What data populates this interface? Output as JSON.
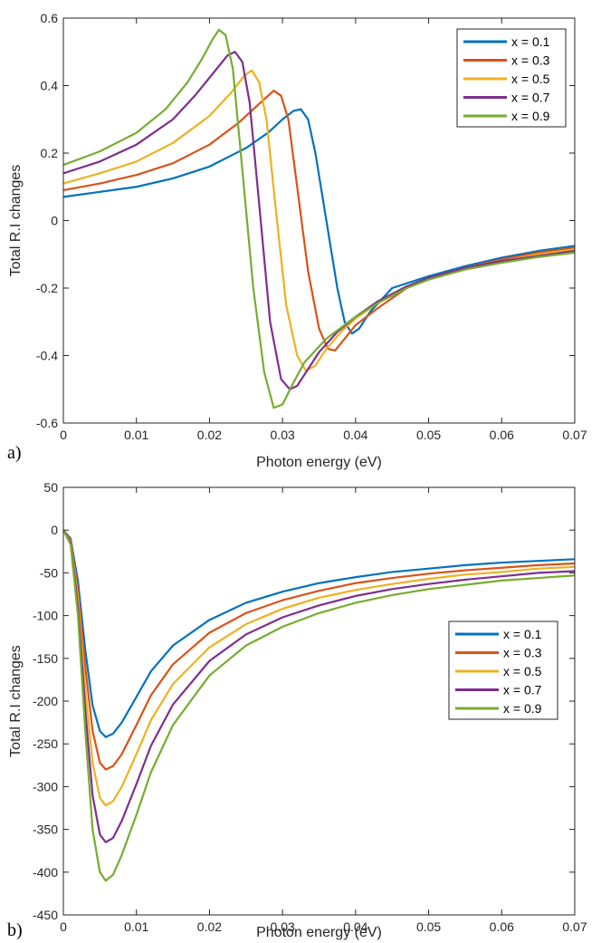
{
  "colors": {
    "series": [
      "#0072BD",
      "#D95319",
      "#EDB120",
      "#7E2F8E",
      "#77AC30"
    ],
    "axis": "#262626"
  },
  "chart_data": [
    {
      "id": "a",
      "panel_label": "a)",
      "type": "line",
      "xlabel": "Photon energy (eV)",
      "ylabel": "Total R.I changes",
      "xlim": [
        0,
        0.07
      ],
      "ylim": [
        -0.6,
        0.6
      ],
      "xticks": [
        0,
        0.01,
        0.02,
        0.03,
        0.04,
        0.05,
        0.06,
        0.07
      ],
      "xtick_labels": [
        "0",
        "0.01",
        "0.02",
        "0.03",
        "0.04",
        "0.05",
        "0.06",
        "0.07"
      ],
      "yticks": [
        -0.6,
        -0.4,
        -0.2,
        0,
        0.2,
        0.4,
        0.6
      ],
      "ytick_labels": [
        "-0.6",
        "-0.4",
        "-0.2",
        "0",
        "0.2",
        "0.4",
        "0.6"
      ],
      "legend_position": "top-right",
      "series": [
        {
          "name": "x = 0.1",
          "x": [
            0,
            0.005,
            0.01,
            0.015,
            0.02,
            0.025,
            0.028,
            0.03,
            0.0315,
            0.0325,
            0.0335,
            0.0345,
            0.036,
            0.0375,
            0.0385,
            0.0395,
            0.0405,
            0.042,
            0.045,
            0.05,
            0.055,
            0.06,
            0.065,
            0.07
          ],
          "y": [
            0.07,
            0.085,
            0.1,
            0.125,
            0.16,
            0.215,
            0.26,
            0.3,
            0.325,
            0.33,
            0.3,
            0.2,
            0.0,
            -0.2,
            -0.3,
            -0.335,
            -0.32,
            -0.27,
            -0.2,
            -0.165,
            -0.135,
            -0.11,
            -0.09,
            -0.075
          ]
        },
        {
          "name": "x = 0.3",
          "x": [
            0,
            0.005,
            0.01,
            0.015,
            0.02,
            0.024,
            0.027,
            0.0288,
            0.0298,
            0.0308,
            0.032,
            0.0335,
            0.035,
            0.0362,
            0.0372,
            0.0385,
            0.04,
            0.043,
            0.047,
            0.05,
            0.055,
            0.06,
            0.065,
            0.07
          ],
          "y": [
            0.09,
            0.11,
            0.135,
            0.17,
            0.225,
            0.29,
            0.35,
            0.385,
            0.37,
            0.3,
            0.1,
            -0.15,
            -0.32,
            -0.38,
            -0.385,
            -0.35,
            -0.31,
            -0.26,
            -0.2,
            -0.17,
            -0.14,
            -0.115,
            -0.095,
            -0.08
          ]
        },
        {
          "name": "x = 0.5",
          "x": [
            0,
            0.005,
            0.01,
            0.015,
            0.02,
            0.023,
            0.0248,
            0.0258,
            0.0268,
            0.0278,
            0.029,
            0.0305,
            0.032,
            0.0332,
            0.0345,
            0.036,
            0.038,
            0.04,
            0.043,
            0.047,
            0.05,
            0.055,
            0.06,
            0.065,
            0.07
          ],
          "y": [
            0.11,
            0.14,
            0.175,
            0.23,
            0.31,
            0.38,
            0.43,
            0.445,
            0.41,
            0.3,
            0.05,
            -0.25,
            -0.4,
            -0.445,
            -0.43,
            -0.38,
            -0.33,
            -0.29,
            -0.245,
            -0.195,
            -0.17,
            -0.14,
            -0.12,
            -0.1,
            -0.085
          ]
        },
        {
          "name": "x = 0.7",
          "x": [
            0,
            0.005,
            0.01,
            0.015,
            0.018,
            0.021,
            0.0225,
            0.0235,
            0.0245,
            0.0255,
            0.0268,
            0.0283,
            0.0298,
            0.031,
            0.032,
            0.0335,
            0.035,
            0.0375,
            0.04,
            0.043,
            0.047,
            0.05,
            0.055,
            0.06,
            0.065,
            0.07
          ],
          "y": [
            0.14,
            0.175,
            0.225,
            0.3,
            0.37,
            0.45,
            0.49,
            0.5,
            0.47,
            0.35,
            0.05,
            -0.3,
            -0.47,
            -0.5,
            -0.49,
            -0.44,
            -0.39,
            -0.33,
            -0.285,
            -0.24,
            -0.195,
            -0.17,
            -0.14,
            -0.12,
            -0.105,
            -0.09
          ]
        },
        {
          "name": "x = 0.9",
          "x": [
            0,
            0.005,
            0.01,
            0.014,
            0.017,
            0.019,
            0.0205,
            0.0213,
            0.0222,
            0.0232,
            0.0245,
            0.026,
            0.0275,
            0.0288,
            0.03,
            0.0315,
            0.033,
            0.036,
            0.04,
            0.043,
            0.047,
            0.05,
            0.055,
            0.06,
            0.065,
            0.07
          ],
          "y": [
            0.165,
            0.205,
            0.26,
            0.33,
            0.41,
            0.48,
            0.54,
            0.565,
            0.55,
            0.45,
            0.15,
            -0.2,
            -0.45,
            -0.555,
            -0.545,
            -0.48,
            -0.42,
            -0.35,
            -0.285,
            -0.245,
            -0.2,
            -0.175,
            -0.145,
            -0.125,
            -0.108,
            -0.095
          ]
        }
      ]
    },
    {
      "id": "b",
      "panel_label": "b)",
      "type": "line",
      "xlabel": "Photon energy (eV)",
      "ylabel": "Total R.I changes",
      "xlim": [
        0,
        0.07
      ],
      "ylim": [
        -450,
        50
      ],
      "xticks": [
        0,
        0.01,
        0.02,
        0.03,
        0.04,
        0.05,
        0.06,
        0.07
      ],
      "xtick_labels": [
        "0",
        "0.01",
        "0.02",
        "0.03",
        "0.04",
        "0.05",
        "0.06",
        "0.07"
      ],
      "yticks": [
        -450,
        -400,
        -350,
        -300,
        -250,
        -200,
        -150,
        -100,
        -50,
        0,
        50
      ],
      "ytick_labels": [
        "-450",
        "-400",
        "-350",
        "-300",
        "-250",
        "-200",
        "-150",
        "-100",
        "-50",
        "0",
        "50"
      ],
      "legend_position": "right",
      "series": [
        {
          "name": "x = 0.1",
          "x": [
            0,
            0.001,
            0.002,
            0.003,
            0.004,
            0.005,
            0.0058,
            0.0068,
            0.008,
            0.01,
            0.012,
            0.015,
            0.02,
            0.025,
            0.03,
            0.035,
            0.04,
            0.045,
            0.05,
            0.055,
            0.06,
            0.065,
            0.07
          ],
          "y": [
            0,
            -10,
            -60,
            -140,
            -205,
            -235,
            -242,
            -238,
            -225,
            -195,
            -165,
            -135,
            -105,
            -85,
            -72,
            -62,
            -55,
            -49,
            -45,
            -41,
            -38,
            -36,
            -34
          ]
        },
        {
          "name": "x = 0.3",
          "x": [
            0,
            0.001,
            0.002,
            0.003,
            0.004,
            0.005,
            0.0058,
            0.0068,
            0.008,
            0.01,
            0.012,
            0.015,
            0.02,
            0.025,
            0.03,
            0.035,
            0.04,
            0.045,
            0.05,
            0.055,
            0.06,
            0.065,
            0.07
          ],
          "y": [
            0,
            -12,
            -70,
            -160,
            -235,
            -272,
            -280,
            -276,
            -262,
            -228,
            -193,
            -157,
            -120,
            -97,
            -82,
            -71,
            -62,
            -56,
            -51,
            -47,
            -44,
            -41,
            -39
          ]
        },
        {
          "name": "x = 0.5",
          "x": [
            0,
            0.001,
            0.002,
            0.003,
            0.004,
            0.005,
            0.0058,
            0.0068,
            0.008,
            0.01,
            0.012,
            0.015,
            0.02,
            0.025,
            0.03,
            0.035,
            0.04,
            0.045,
            0.05,
            0.055,
            0.06,
            0.065,
            0.07
          ],
          "y": [
            0,
            -14,
            -80,
            -185,
            -272,
            -313,
            -322,
            -317,
            -300,
            -262,
            -222,
            -180,
            -137,
            -110,
            -92,
            -79,
            -70,
            -63,
            -57,
            -52,
            -49,
            -45,
            -43
          ]
        },
        {
          "name": "x = 0.7",
          "x": [
            0,
            0.001,
            0.002,
            0.003,
            0.004,
            0.005,
            0.0058,
            0.0068,
            0.008,
            0.01,
            0.012,
            0.015,
            0.02,
            0.025,
            0.03,
            0.035,
            0.04,
            0.045,
            0.05,
            0.055,
            0.06,
            0.065,
            0.07
          ],
          "y": [
            0,
            -15,
            -90,
            -210,
            -310,
            -356,
            -365,
            -360,
            -340,
            -297,
            -252,
            -204,
            -153,
            -122,
            -102,
            -88,
            -77,
            -69,
            -63,
            -58,
            -54,
            -50,
            -48
          ]
        },
        {
          "name": "x = 0.9",
          "x": [
            0,
            0.001,
            0.002,
            0.003,
            0.004,
            0.005,
            0.0058,
            0.0068,
            0.008,
            0.01,
            0.012,
            0.015,
            0.02,
            0.025,
            0.03,
            0.035,
            0.04,
            0.045,
            0.05,
            0.055,
            0.06,
            0.065,
            0.07
          ],
          "y": [
            0,
            -17,
            -100,
            -235,
            -350,
            -400,
            -410,
            -403,
            -380,
            -333,
            -283,
            -228,
            -170,
            -135,
            -113,
            -97,
            -85,
            -76,
            -69,
            -64,
            -59,
            -56,
            -53
          ]
        }
      ]
    }
  ]
}
